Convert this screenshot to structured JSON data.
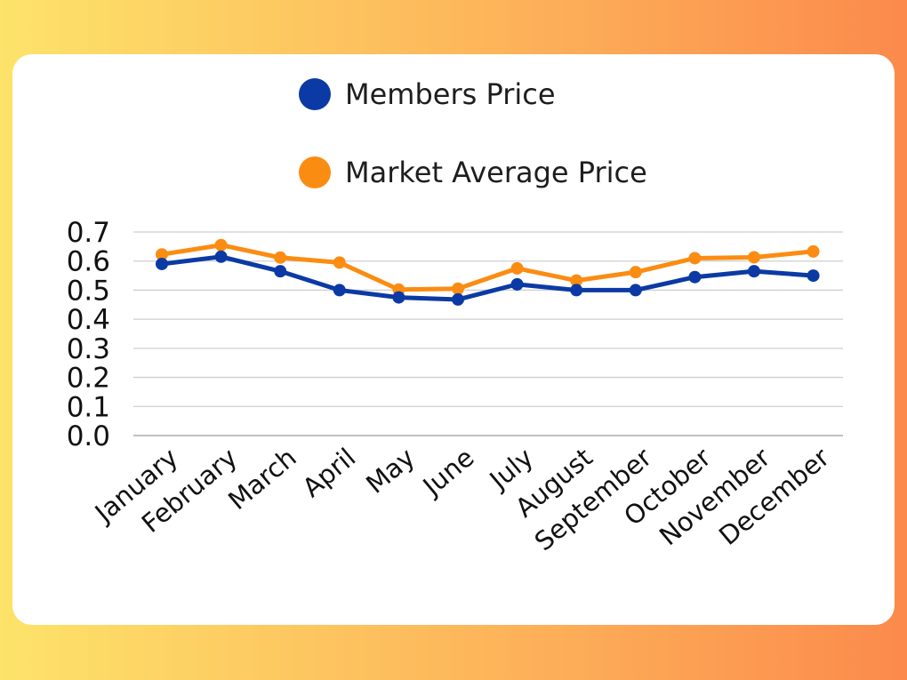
{
  "chart_data": {
    "type": "line",
    "categories": [
      "January",
      "February",
      "March",
      "April",
      "May",
      "June",
      "July",
      "August",
      "September",
      "October",
      "November",
      "December"
    ],
    "series": [
      {
        "name": "Members Price",
        "color": "#0b3aa4",
        "values": [
          0.59,
          0.615,
          0.565,
          0.5,
          0.475,
          0.468,
          0.52,
          0.5,
          0.5,
          0.545,
          0.565,
          0.55
        ]
      },
      {
        "name": "Market Average Price",
        "color": "#fb8c12",
        "values": [
          0.623,
          0.655,
          0.612,
          0.595,
          0.502,
          0.505,
          0.575,
          0.533,
          0.562,
          0.61,
          0.613,
          0.633
        ]
      }
    ],
    "yticks": [
      "0.0",
      "0.1",
      "0.2",
      "0.3",
      "0.4",
      "0.5",
      "0.6",
      "0.7"
    ],
    "ylim": [
      0,
      0.7
    ],
    "grid": true,
    "legend_position": "top-center"
  },
  "colors": {
    "background_start": "#fde36a",
    "background_end": "#fb8a4c",
    "card": "#ffffff",
    "grid": "#cfcfcf"
  }
}
